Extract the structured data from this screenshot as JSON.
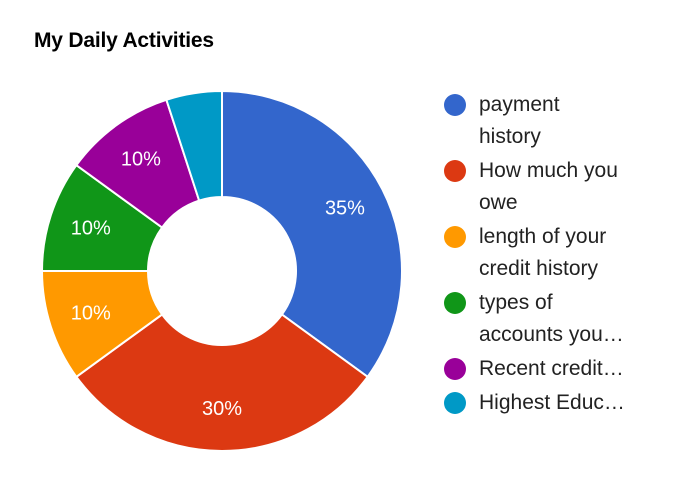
{
  "chart_data": {
    "type": "pie",
    "title": "My Daily Activities",
    "donut": true,
    "legend_position": "right",
    "start_angle_deg": 0,
    "direction": "clockwise",
    "slices": [
      {
        "label": "payment history",
        "legend_lines": [
          "payment",
          "history"
        ],
        "value": 35,
        "value_label": "35%",
        "color": "#3366CC"
      },
      {
        "label": "How much you owe",
        "legend_lines": [
          "How much you",
          "owe"
        ],
        "value": 30,
        "value_label": "30%",
        "color": "#DC3912"
      },
      {
        "label": "length of your credit history",
        "legend_lines": [
          "length of your",
          "credit history"
        ],
        "value": 10,
        "value_label": "10%",
        "color": "#FF9900"
      },
      {
        "label": "types of accounts you…",
        "legend_lines": [
          "types of",
          "accounts you…"
        ],
        "value": 10,
        "value_label": "10%",
        "color": "#109618"
      },
      {
        "label": "Recent credit…",
        "legend_lines": [
          "Recent credit…"
        ],
        "value": 10,
        "value_label": "10%",
        "color": "#990099"
      },
      {
        "label": "Highest Educ…",
        "legend_lines": [
          "Highest Educ…"
        ],
        "value": 5,
        "value_label": "",
        "color": "#0099C6"
      }
    ]
  }
}
